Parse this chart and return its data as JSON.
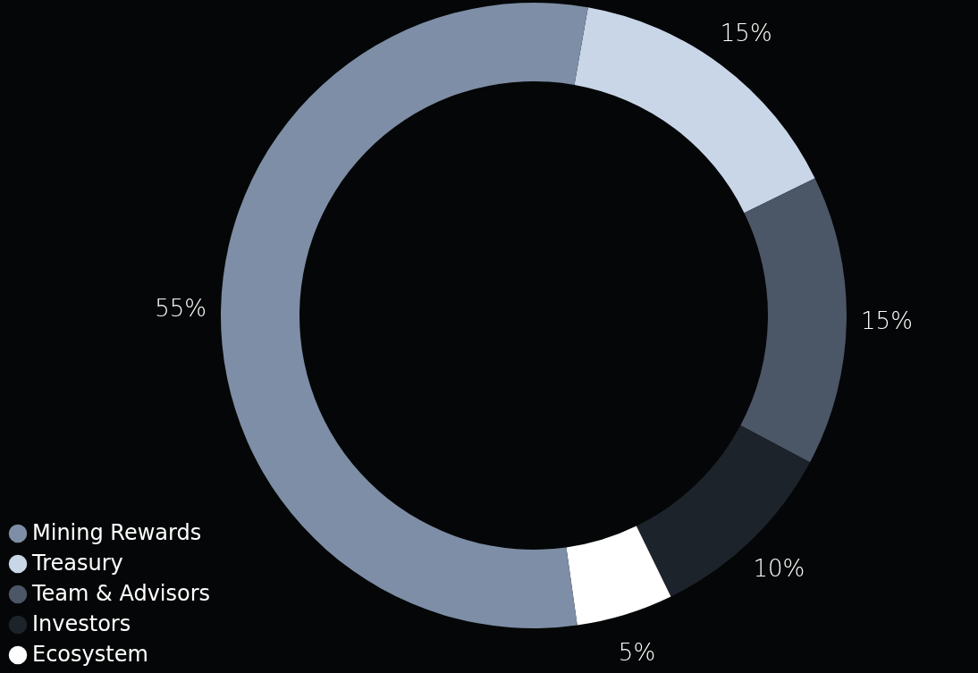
{
  "chart_data": {
    "type": "donut",
    "categories": [
      "Treasury",
      "Team & Advisors",
      "Investors",
      "Ecosystem",
      "Mining Rewards"
    ],
    "values": [
      15,
      15,
      10,
      5,
      55
    ],
    "colors": [
      "#c9d6e8",
      "#4b5667",
      "#1c232b",
      "#ffffff",
      "#7d8ea6"
    ],
    "value_labels": [
      "15%",
      "15%",
      "10%",
      "5%",
      "55%"
    ],
    "legend": "bottom left"
  }
}
